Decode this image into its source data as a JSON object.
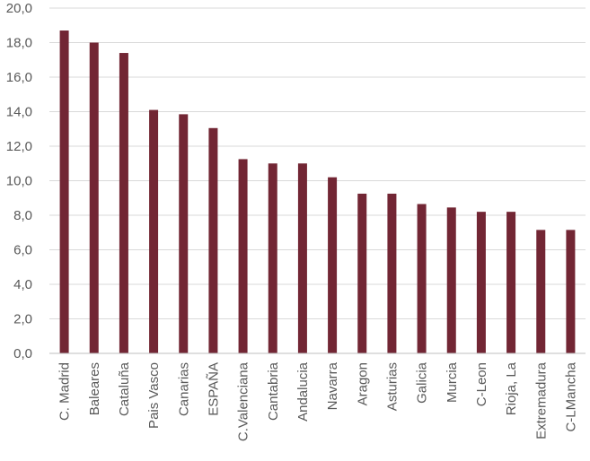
{
  "chart_data": {
    "type": "bar",
    "title": "",
    "xlabel": "",
    "ylabel": "",
    "ylim": [
      0,
      20
    ],
    "y_ticks": [
      "0,0",
      "2,0",
      "4,0",
      "6,0",
      "8,0",
      "10,0",
      "12,0",
      "14,0",
      "16,0",
      "18,0",
      "20,0"
    ],
    "grid": true,
    "legend": "none",
    "bar_color": "#722634",
    "categories": [
      "C. Madrid",
      "Baleares",
      "Cataluña",
      "Pais Vasco",
      "Canarias",
      "ESPAÑA",
      "C.Valenciana",
      "Cantabria",
      "Andalucia",
      "Navarra",
      "Aragon",
      "Asturias",
      "Galicia",
      "Murcia",
      "C-Leon",
      "Rioja, La",
      "Extremadura",
      "C-LMancha"
    ],
    "values": [
      18.7,
      18.0,
      17.4,
      14.1,
      13.85,
      13.05,
      11.25,
      11.0,
      11.0,
      10.2,
      9.25,
      9.25,
      8.65,
      8.45,
      8.2,
      8.2,
      7.15,
      7.15
    ]
  }
}
